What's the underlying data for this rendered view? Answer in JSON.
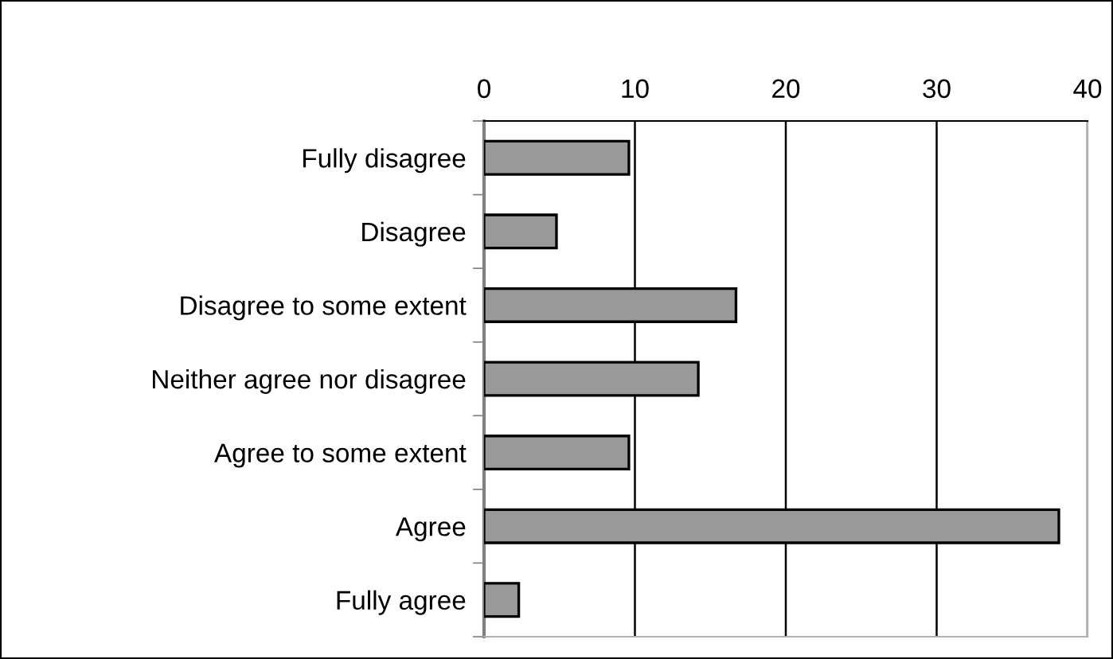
{
  "chart_data": {
    "type": "bar",
    "orientation": "horizontal",
    "categories": [
      "Fully disagree",
      "Disagree",
      "Disagree to some extent",
      "Neither agree nor disagree",
      "Agree to some extent",
      "Agree",
      "Fully agree"
    ],
    "values": [
      9.6,
      4.8,
      16.7,
      14.2,
      9.6,
      38.1,
      2.3
    ],
    "color": "#999999",
    "xlim": [
      0,
      40
    ],
    "xticks": [
      0,
      10,
      20,
      30,
      40
    ],
    "grid": "x"
  }
}
